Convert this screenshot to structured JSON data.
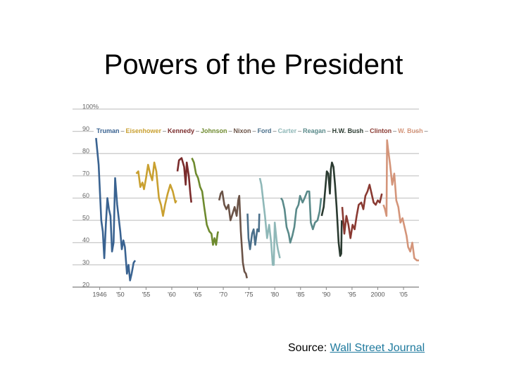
{
  "title": "Powers of the President",
  "chart_data": {
    "type": "line",
    "xlim": [
      1941,
      2008
    ],
    "ylim": [
      20,
      100
    ],
    "xticks": [
      {
        "value": 1946,
        "label": "1946"
      },
      {
        "value": 1950,
        "label": "'50"
      },
      {
        "value": 1955,
        "label": "'55"
      },
      {
        "value": 1960,
        "label": "'60"
      },
      {
        "value": 1965,
        "label": "'65"
      },
      {
        "value": 1970,
        "label": "'70"
      },
      {
        "value": 1975,
        "label": "'75"
      },
      {
        "value": 1980,
        "label": "'80"
      },
      {
        "value": 1985,
        "label": "'85"
      },
      {
        "value": 1990,
        "label": "'90"
      },
      {
        "value": 1995,
        "label": "'95"
      },
      {
        "value": 2000,
        "label": "2000"
      },
      {
        "value": 2005,
        "label": "'05"
      }
    ],
    "yticks": [
      20,
      30,
      40,
      50,
      60,
      70,
      80,
      90,
      {
        "value": 100,
        "label": "100%"
      }
    ],
    "grid": true,
    "series": [
      {
        "name": "Truman",
        "color": "#3a6391",
        "x": [
          1945.3,
          1945.8,
          1946.3,
          1946.6,
          1946.9,
          1947.2,
          1947.5,
          1947.8,
          1948.1,
          1948.4,
          1948.7,
          1949.0,
          1949.4,
          1949.7,
          1950.0,
          1950.3,
          1950.6,
          1950.9,
          1951.3,
          1951.6,
          1951.9,
          1952.2,
          1952.6,
          1952.9
        ],
        "values": [
          87,
          75,
          50,
          45,
          33,
          48,
          60,
          55,
          52,
          36,
          40,
          69,
          57,
          51,
          45,
          37,
          41,
          38,
          26,
          30,
          23,
          26,
          31,
          32
        ]
      },
      {
        "name": "Eisenhower",
        "color": "#c9a030",
        "x": [
          1953.1,
          1953.5,
          1953.9,
          1954.3,
          1954.6,
          1955.0,
          1955.4,
          1955.8,
          1956.2,
          1956.6,
          1957.0,
          1957.5,
          1957.9,
          1958.3,
          1958.7,
          1959.2,
          1959.7,
          1960.2,
          1960.7,
          1960.9
        ],
        "values": [
          71,
          72,
          65,
          67,
          64,
          69,
          75,
          71,
          68,
          76,
          72,
          60,
          57,
          52,
          57,
          62,
          66,
          63,
          58,
          59
        ]
      },
      {
        "name": "Kennedy",
        "color": "#7a2b2b",
        "x": [
          1961.1,
          1961.4,
          1961.9,
          1962.4,
          1962.7,
          1962.9,
          1963.3,
          1963.6,
          1963.8
        ],
        "values": [
          72,
          77,
          78,
          74,
          66,
          76,
          70,
          62,
          58
        ]
      },
      {
        "name": "Johnson",
        "color": "#6e8a2e",
        "x": [
          1963.9,
          1964.3,
          1964.7,
          1965.1,
          1965.5,
          1965.9,
          1966.3,
          1966.8,
          1967.3,
          1967.7,
          1968.0,
          1968.3,
          1968.6,
          1968.9,
          1969.0
        ],
        "values": [
          78,
          76,
          71,
          69,
          65,
          63,
          56,
          48,
          45,
          44,
          39,
          42,
          39,
          44,
          45
        ]
      },
      {
        "name": "Nixon",
        "color": "#6b5347",
        "x": [
          1969.2,
          1969.5,
          1969.8,
          1970.2,
          1970.6,
          1971.0,
          1971.4,
          1971.8,
          1972.2,
          1972.6,
          1972.9,
          1973.1,
          1973.4,
          1973.8,
          1974.1,
          1974.4,
          1974.6
        ],
        "values": [
          59,
          62,
          63,
          57,
          55,
          57,
          50,
          53,
          56,
          52,
          59,
          61,
          45,
          31,
          27,
          26,
          24
        ]
      },
      {
        "name": "Ford",
        "color": "#4a6f8a",
        "x": [
          1974.7,
          1974.9,
          1975.2,
          1975.6,
          1975.9,
          1976.2,
          1976.6,
          1976.9,
          1977.0
        ],
        "values": [
          53,
          42,
          37,
          44,
          46,
          39,
          46,
          45,
          53
        ]
      },
      {
        "name": "Carter",
        "color": "#8fb8b8",
        "x": [
          1977.1,
          1977.4,
          1977.8,
          1978.1,
          1978.5,
          1978.9,
          1979.3,
          1979.6,
          1979.8,
          1980.0,
          1980.4,
          1980.6,
          1980.9,
          1981.0
        ],
        "values": [
          69,
          66,
          58,
          52,
          42,
          48,
          40,
          30,
          30,
          49,
          40,
          37,
          34,
          33
        ]
      },
      {
        "name": "Reagan",
        "color": "#5a8a8a",
        "x": [
          1981.2,
          1981.5,
          1981.9,
          1982.3,
          1982.7,
          1983.0,
          1983.4,
          1983.8,
          1984.2,
          1984.6,
          1984.9,
          1985.4,
          1985.8,
          1986.3,
          1986.7,
          1987.0,
          1987.4,
          1987.8,
          1988.3,
          1988.7,
          1989.0
        ],
        "values": [
          60,
          59,
          55,
          47,
          44,
          40,
          43,
          47,
          55,
          57,
          61,
          58,
          60,
          63,
          63,
          49,
          46,
          49,
          50,
          54,
          60
        ]
      },
      {
        "name": "H.W. Bush",
        "color": "#2a3a30",
        "x": [
          1989.1,
          1989.5,
          1989.8,
          1990.1,
          1990.4,
          1990.7,
          1990.9,
          1991.1,
          1991.4,
          1991.7,
          1992.0,
          1992.4,
          1992.7,
          1992.9,
          1993.0
        ],
        "values": [
          52,
          56,
          64,
          72,
          71,
          62,
          73,
          76,
          74,
          66,
          56,
          40,
          34,
          35,
          50
        ]
      },
      {
        "name": "Clinton",
        "color": "#8a3a32",
        "x": [
          1993.1,
          1993.5,
          1993.9,
          1994.3,
          1994.7,
          1995.1,
          1995.5,
          1995.9,
          1996.3,
          1996.8,
          1997.2,
          1997.6,
          1998.0,
          1998.4,
          1998.8,
          1999.2,
          1999.6,
          2000.0,
          2000.4,
          2000.8
        ],
        "values": [
          56,
          44,
          52,
          48,
          42,
          48,
          46,
          52,
          57,
          58,
          55,
          61,
          63,
          66,
          62,
          58,
          57,
          59,
          58,
          62
        ]
      },
      {
        "name": "W. Bush",
        "color": "#d4957a",
        "x": [
          2001.1,
          2001.4,
          2001.7,
          2001.8,
          2002.0,
          2002.4,
          2002.8,
          2003.2,
          2003.6,
          2004.0,
          2004.4,
          2004.8,
          2005.2,
          2005.6,
          2005.9,
          2006.3,
          2006.7,
          2007.1,
          2007.6,
          2008.0
        ],
        "values": [
          57,
          55,
          52,
          86,
          82,
          75,
          66,
          71,
          59,
          56,
          49,
          51,
          47,
          43,
          38,
          36,
          40,
          33,
          32,
          32
        ]
      }
    ]
  },
  "source": {
    "prefix": "Source:",
    "link": "Wall Street Journal"
  }
}
